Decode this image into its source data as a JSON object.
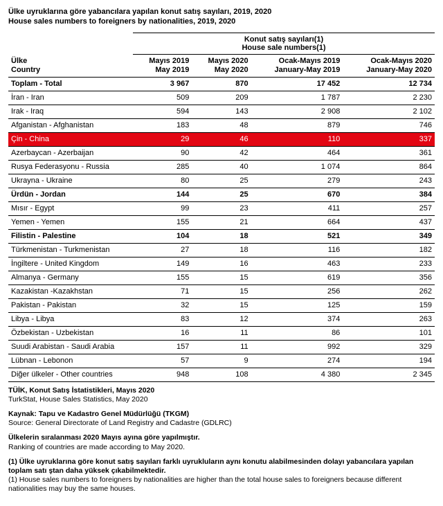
{
  "title_tr": "Ülke uyruklarına göre yabancılara yapılan konut satış sayıları, 2019, 2020",
  "title_en": "House sales numbers to foreigners by nationalities, 2019, 2020",
  "group_header_tr": "Konut satış sayıları(1)",
  "group_header_en": "House sale numbers(1)",
  "col0_tr": "Ülke",
  "col0_en": "Country",
  "cols": [
    {
      "tr": "Mayıs 2019",
      "en": "May 2019"
    },
    {
      "tr": "Mayıs 2020",
      "en": "May 2020"
    },
    {
      "tr": "Ocak-Mayıs 2019",
      "en": "January-May 2019"
    },
    {
      "tr": "Ocak-Mayıs 2020",
      "en": "January-May 2020"
    }
  ],
  "rows": [
    {
      "c": "Toplam - Total",
      "v": [
        "3 967",
        "870",
        "17 452",
        "12 734"
      ],
      "b": true
    },
    {
      "c": "İran - Iran",
      "v": [
        "509",
        "209",
        "1 787",
        "2 230"
      ]
    },
    {
      "c": "Irak - Iraq",
      "v": [
        "594",
        "143",
        "2 908",
        "2 102"
      ]
    },
    {
      "c": "Afganistan - Afghanistan",
      "v": [
        "183",
        "48",
        "879",
        "746"
      ]
    },
    {
      "c": "Çin - China",
      "v": [
        "29",
        "46",
        "110",
        "337"
      ],
      "hl": true
    },
    {
      "c": "Azerbaycan - Azerbaijan",
      "v": [
        "90",
        "42",
        "464",
        "361"
      ]
    },
    {
      "c": "Rusya Federasyonu - Russia",
      "v": [
        "285",
        "40",
        "1 074",
        "864"
      ]
    },
    {
      "c": "Ukrayna - Ukraine",
      "v": [
        "80",
        "25",
        "279",
        "243"
      ]
    },
    {
      "c": "Ürdün - Jordan",
      "v": [
        "144",
        "25",
        "670",
        "384"
      ],
      "b": true
    },
    {
      "c": "Mısır - Egypt",
      "v": [
        "99",
        "23",
        "411",
        "257"
      ]
    },
    {
      "c": "Yemen - Yemen",
      "v": [
        "155",
        "21",
        "664",
        "437"
      ]
    },
    {
      "c": "Filistin - Palestine",
      "v": [
        "104",
        "18",
        "521",
        "349"
      ],
      "b": true
    },
    {
      "c": "Türkmenistan - Turkmenistan",
      "v": [
        "27",
        "18",
        "116",
        "182"
      ]
    },
    {
      "c": "İngiltere - United Kingdom",
      "v": [
        "149",
        "16",
        "463",
        "233"
      ]
    },
    {
      "c": "Almanya - Germany",
      "v": [
        "155",
        "15",
        "619",
        "356"
      ]
    },
    {
      "c": "Kazakistan -Kazakhstan",
      "v": [
        "71",
        "15",
        "256",
        "262"
      ]
    },
    {
      "c": "Pakistan - Pakistan",
      "v": [
        "32",
        "15",
        "125",
        "159"
      ]
    },
    {
      "c": "Libya - Libya",
      "v": [
        "83",
        "12",
        "374",
        "263"
      ]
    },
    {
      "c": "Özbekistan - Uzbekistan",
      "v": [
        "16",
        "11",
        "86",
        "101"
      ]
    },
    {
      "c": "Suudi Arabistan - Saudi Arabia",
      "v": [
        "157",
        "11",
        "992",
        "329"
      ]
    },
    {
      "c": "Lübnan - Lebonon",
      "v": [
        "57",
        "9",
        "274",
        "194"
      ]
    },
    {
      "c": "Diğer ülkeler - Other countries",
      "v": [
        "948",
        "108",
        "4 380",
        "2 345"
      ]
    }
  ],
  "footers": [
    {
      "b": "TÜİK, Konut Satış İstatistikleri, Mayıs 2020",
      "n": "TurkStat, House Sales Statistics, May 2020"
    },
    {
      "b": "Kaynak: Tapu ve Kadastro Genel Müdürlüğü (TKGM)",
      "n": "Source: General Directorate of Land Registry and Cadastre (GDLRC)"
    },
    {
      "b": "Ülkelerin sıralanması 2020 Mayıs ayına göre yapılmıştır.",
      "n": "Ranking of countries are made according to May 2020."
    },
    {
      "b": "(1) Ülke uyruklarına göre konut satış sayıları farklı uyrukluların aynı konutu alabilmesinden dolayı yabancılara yapılan toplam satı ştan daha  yüksek çıkabilmektedir.",
      "n": "(1) House sales numbers to foreigners by nationalities are higher than the total house sales to foreigners because different nationalities may buy the same houses."
    }
  ]
}
